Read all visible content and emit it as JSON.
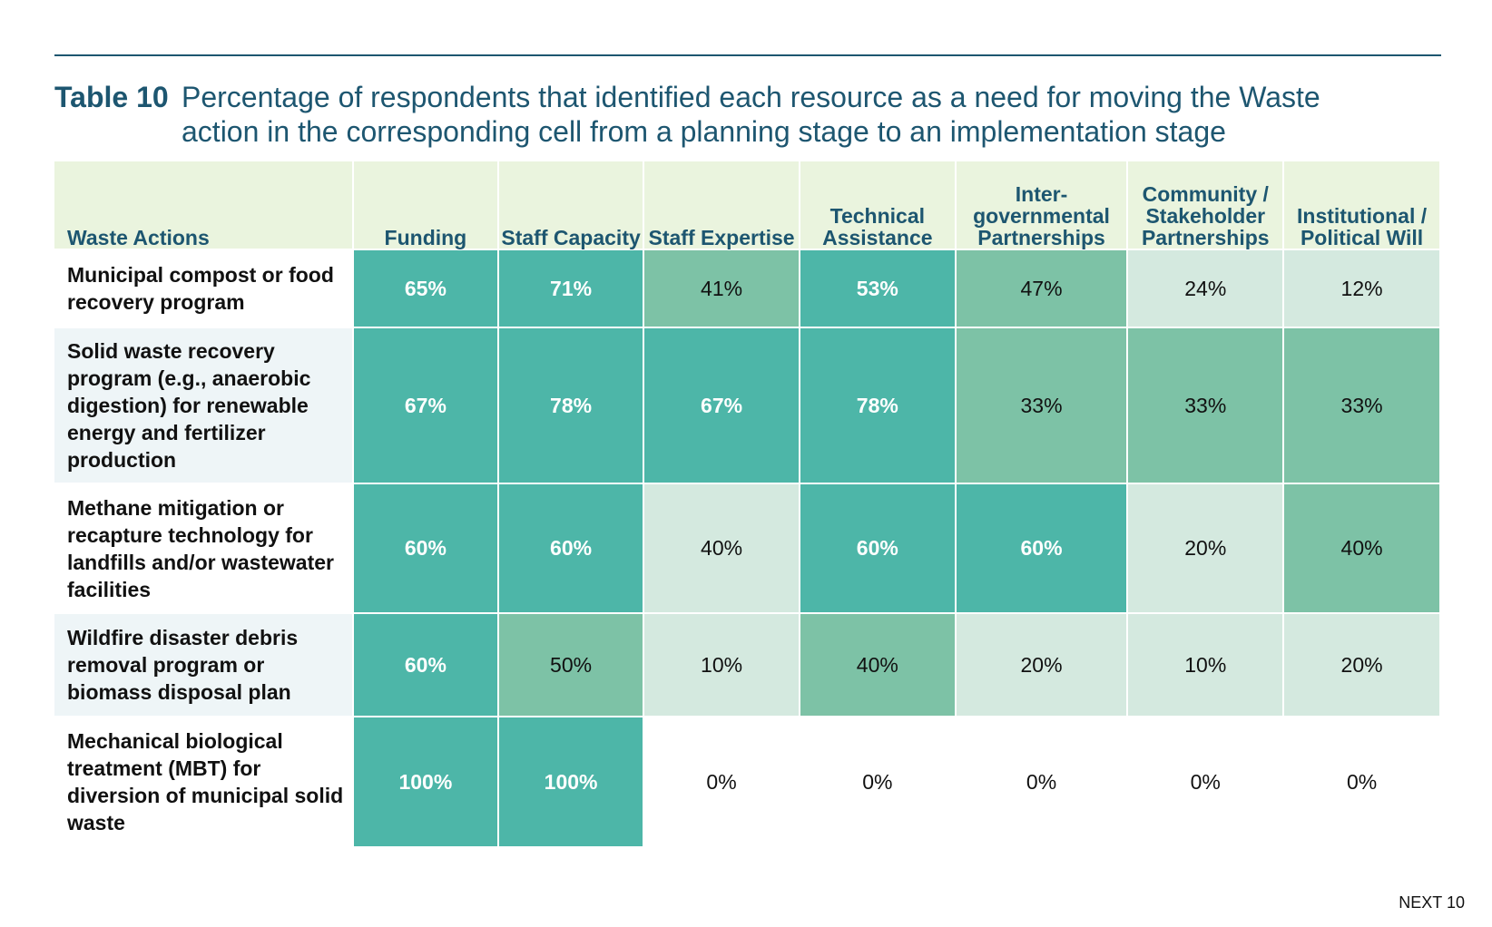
{
  "caption": {
    "label": "Table 10",
    "text": "Percentage of respondents that identified each resource as a need for moving the Waste action in the corresponding cell from a planning stage to an implementation stage"
  },
  "table": {
    "headers": [
      "Waste Actions",
      "Funding",
      "Staff Capacity",
      "Staff Expertise",
      "Technical Assistance",
      "Inter-governmental Partnerships",
      "Community / Stakeholder Partnerships",
      "Institutional / Political Will"
    ],
    "rows": [
      {
        "action": "Municipal compost or food recovery program",
        "cells": [
          {
            "value": "65%",
            "level": "high"
          },
          {
            "value": "71%",
            "level": "high"
          },
          {
            "value": "41%",
            "level": "mid"
          },
          {
            "value": "53%",
            "level": "high"
          },
          {
            "value": "47%",
            "level": "mid"
          },
          {
            "value": "24%",
            "level": "low"
          },
          {
            "value": "12%",
            "level": "low"
          }
        ]
      },
      {
        "action": "Solid waste recovery program (e.g., anaerobic digestion) for renewable energy and fertilizer production",
        "cells": [
          {
            "value": "67%",
            "level": "high"
          },
          {
            "value": "78%",
            "level": "high"
          },
          {
            "value": "67%",
            "level": "high"
          },
          {
            "value": "78%",
            "level": "high"
          },
          {
            "value": "33%",
            "level": "mid"
          },
          {
            "value": "33%",
            "level": "mid"
          },
          {
            "value": "33%",
            "level": "mid"
          }
        ]
      },
      {
        "action": "Methane mitigation or recapture technology for landfills and/or wastewater facilities",
        "cells": [
          {
            "value": "60%",
            "level": "high"
          },
          {
            "value": "60%",
            "level": "high"
          },
          {
            "value": "40%",
            "level": "low"
          },
          {
            "value": "60%",
            "level": "high"
          },
          {
            "value": "60%",
            "level": "high"
          },
          {
            "value": "20%",
            "level": "low"
          },
          {
            "value": "40%",
            "level": "mid"
          }
        ]
      },
      {
        "action": "Wildfire disaster debris removal program or biomass disposal plan",
        "cells": [
          {
            "value": "60%",
            "level": "high"
          },
          {
            "value": "50%",
            "level": "mid"
          },
          {
            "value": "10%",
            "level": "low"
          },
          {
            "value": "40%",
            "level": "mid"
          },
          {
            "value": "20%",
            "level": "low"
          },
          {
            "value": "10%",
            "level": "low"
          },
          {
            "value": "20%",
            "level": "low"
          }
        ]
      },
      {
        "action": "Mechanical biological treatment (MBT) for diversion of municipal solid waste",
        "cells": [
          {
            "value": "100%",
            "level": "high"
          },
          {
            "value": "100%",
            "level": "high"
          },
          {
            "value": "0%",
            "level": "none"
          },
          {
            "value": "0%",
            "level": "none"
          },
          {
            "value": "0%",
            "level": "none"
          },
          {
            "value": "0%",
            "level": "none"
          },
          {
            "value": "0%",
            "level": "none"
          }
        ]
      }
    ]
  },
  "colors": {
    "title": "#1d5670",
    "header_bg": "#eaf4de",
    "high": "#4db6a8",
    "mid": "#7dc2a6",
    "low": "#d4e9df"
  },
  "footer": {
    "page": "NEXT 10"
  }
}
